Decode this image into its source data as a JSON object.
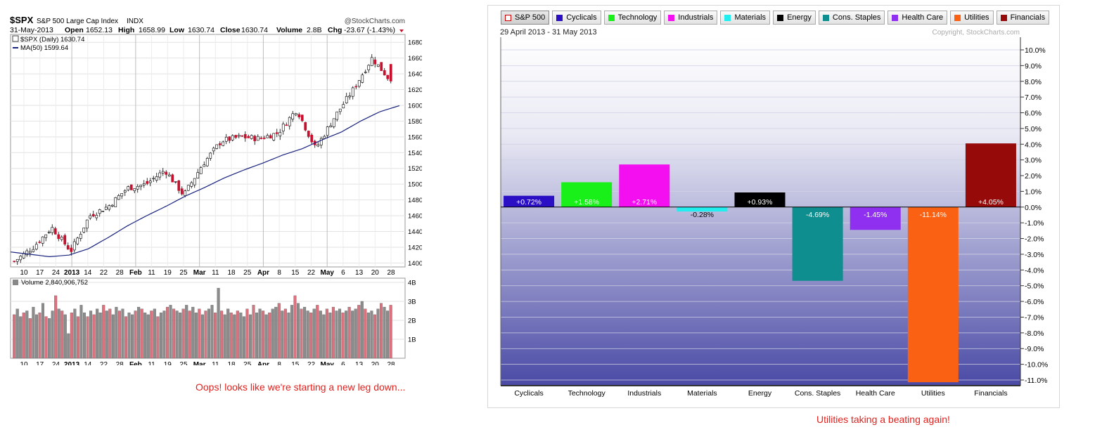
{
  "left": {
    "symbol": "$SPX",
    "name": "S&P 500 Large Cap Index",
    "exchange": "INDX",
    "copyright": "@StockCharts.com",
    "date": "31-May-2013",
    "open_label": "Open",
    "open": "1652.13",
    "high_label": "High",
    "high": "1658.99",
    "low_label": "Low",
    "low": "1630.74",
    "close_label": "Close",
    "close": "1630.74",
    "volume_label": "Volume",
    "volume": "2.8B",
    "chg_label": "Chg",
    "chg": "-23.67 (-1.43%)",
    "legend_price": "$SPX (Daily) 1630.74",
    "legend_ma": "MA(50) 1599.64",
    "volume_title": "Volume 2,840,906,752",
    "caption": "Oops! looks like we're starting a new leg down...",
    "colors": {
      "up": "#ffffff",
      "down": "#c8102e",
      "ma": "#1a237e",
      "vol_gray": "#8c8c8c",
      "vol_red": "#d9737f"
    }
  },
  "right": {
    "date_range": "29 April 2013 - 31 May 2013",
    "copyright": "Copyright, StockCharts.com",
    "caption": "Utilities taking a beating again!",
    "legend": [
      {
        "label": "S&P 500",
        "color": "#ffffff",
        "border": "#cc0000",
        "active": true
      },
      {
        "label": "Cyclicals",
        "color": "#2a0fc4"
      },
      {
        "label": "Technology",
        "color": "#19f01a"
      },
      {
        "label": "Industrials",
        "color": "#f40ff0"
      },
      {
        "label": "Materials",
        "color": "#22eef0"
      },
      {
        "label": "Energy",
        "color": "#000000"
      },
      {
        "label": "Cons. Staples",
        "color": "#0e8e8e"
      },
      {
        "label": "Health Care",
        "color": "#8f2ff0"
      },
      {
        "label": "Utilities",
        "color": "#fb6112"
      },
      {
        "label": "Financials",
        "color": "#960a0a"
      }
    ]
  },
  "chart_data": [
    {
      "type": "candlestick",
      "title": "$SPX S&P 500 Large Cap Index INDX",
      "ylim": [
        1395,
        1690
      ],
      "y_ticks": [
        1400,
        1420,
        1440,
        1460,
        1480,
        1500,
        1520,
        1540,
        1560,
        1580,
        1600,
        1620,
        1640,
        1660,
        1680
      ],
      "x_tick_labels": [
        "10",
        "17",
        "24",
        "2013",
        "14",
        "22",
        "28",
        "Feb",
        "11",
        "19",
        "25",
        "Mar",
        "11",
        "18",
        "25",
        "Apr",
        "8",
        "15",
        "22",
        "May",
        "6",
        "13",
        "20",
        "28"
      ],
      "ma_label": "MA(50)",
      "ma_points": [
        1414,
        1411,
        1408,
        1410,
        1418,
        1432,
        1447,
        1460,
        1472,
        1485,
        1496,
        1508,
        1518,
        1527,
        1537,
        1545,
        1556,
        1566,
        1580,
        1592,
        1599.64
      ],
      "close_points": [
        1402,
        1420,
        1445,
        1415,
        1460,
        1472,
        1495,
        1500,
        1518,
        1486,
        1525,
        1555,
        1560,
        1558,
        1565,
        1595,
        1545,
        1585,
        1620,
        1660,
        1630.74
      ],
      "last_close": 1630.74
    },
    {
      "type": "bar",
      "title": "Volume 2,840,906,752",
      "ylim": [
        0,
        4
      ],
      "y_ticks": [
        "1B",
        "2B",
        "3B",
        "4B"
      ],
      "last_value": 2.84,
      "values": [
        2.3,
        2.6,
        2.2,
        2.4,
        2.5,
        2.1,
        2.7,
        2.3,
        2.4,
        2.9,
        2.2,
        2.1,
        2.5,
        3.3,
        2.6,
        2.5,
        2.3,
        1.3,
        2.4,
        2.6,
        2.2,
        2.8,
        2.4,
        2.2,
        2.5,
        2.3,
        2.6,
        2.4,
        2.8,
        2.5,
        2.6,
        2.3,
        2.7,
        2.5,
        2.6,
        2.2,
        2.4,
        2.3,
        2.5,
        2.7,
        2.6,
        2.4,
        2.3,
        2.5,
        2.6,
        2.2,
        2.4,
        2.5,
        2.7,
        2.8,
        2.6,
        2.5,
        2.4,
        2.6,
        2.8,
        2.5,
        2.7,
        2.4,
        2.6,
        2.3,
        2.5,
        2.6,
        2.8,
        2.4,
        3.7,
        2.5,
        2.3,
        2.6,
        2.4,
        2.3,
        2.5,
        2.4,
        2.2,
        2.6,
        2.3,
        2.8,
        2.4,
        2.6,
        2.5,
        2.3,
        2.4,
        2.6,
        2.7,
        2.9,
        2.5,
        2.6,
        2.4,
        2.8,
        3.3,
        2.9,
        2.6,
        2.7,
        2.5,
        2.4,
        2.6,
        2.8,
        2.5,
        2.3,
        2.6,
        2.4,
        2.7,
        2.5,
        2.6,
        2.4,
        2.5,
        2.7,
        2.5,
        2.6,
        2.8,
        3.0,
        2.6,
        2.4,
        2.5,
        2.3,
        2.6,
        2.9,
        2.7,
        2.5,
        2.8
      ]
    },
    {
      "type": "bar",
      "title": "29 April 2013 - 31 May 2013",
      "ylim": [
        -11.0,
        10.0
      ],
      "y_ticks": [
        10,
        9,
        8,
        7,
        6,
        5,
        4,
        3,
        2,
        1,
        0,
        -1,
        -2,
        -3,
        -4,
        -5,
        -6,
        -7,
        -8,
        -9,
        -10,
        -11
      ],
      "categories": [
        "Cyclicals",
        "Technology",
        "Industrials",
        "Materials",
        "Energy",
        "Cons. Staples",
        "Health Care",
        "Utilities",
        "Financials"
      ],
      "values": [
        0.72,
        1.58,
        2.71,
        -0.28,
        0.93,
        -4.69,
        -1.45,
        -11.14,
        4.05
      ],
      "labels": [
        "+0.72%",
        "+1.58%",
        "+2.71%",
        "-0.28%",
        "+0.93%",
        "-4.69%",
        "-1.45%",
        "-11.14%",
        "+4.05%"
      ],
      "colors": [
        "#2a0fc4",
        "#19f01a",
        "#f40ff0",
        "#22eef0",
        "#000000",
        "#0e8e8e",
        "#8f2ff0",
        "#fb6112",
        "#960a0a"
      ]
    }
  ]
}
